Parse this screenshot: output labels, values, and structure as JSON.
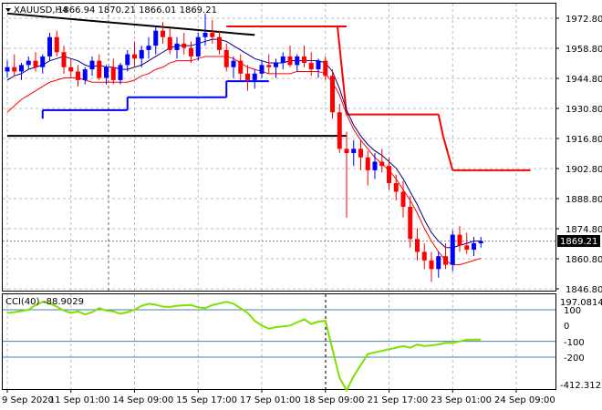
{
  "header": {
    "symbol": "XAUUSD,H4",
    "ohlc": "1866.94 1870.21 1866.01 1869.21"
  },
  "price_badge": "1869.21",
  "chart_data": [
    {
      "type": "candlestick",
      "title": "XAUUSD,H4",
      "ylim": [
        1846.8,
        1979.0
      ],
      "y_ticks": [
        "1972.80",
        "1958.80",
        "1944.80",
        "1930.80",
        "1916.80",
        "1902.80",
        "1888.80",
        "1874.80",
        "1860.80",
        "1846.80"
      ],
      "x_ticks": [
        "9 Sep 2020",
        "11 Sep 01:00",
        "14 Sep 09:00",
        "15 Sep 17:00",
        "17 Sep 01:00",
        "18 Sep 09:00",
        "21 Sep 17:00",
        "23 Sep 01:00",
        "24 Sep 09:00"
      ],
      "x_tick_index": [
        0,
        9,
        18,
        27,
        36,
        45,
        54,
        63,
        72
      ],
      "candles": [
        [
          1948,
          1953,
          1945,
          1950
        ],
        [
          1950,
          1956,
          1946,
          1948
        ],
        [
          1948,
          1952,
          1944,
          1951
        ],
        [
          1951,
          1955,
          1949,
          1953
        ],
        [
          1953,
          1957,
          1948,
          1950
        ],
        [
          1950,
          1956,
          1947,
          1955
        ],
        [
          1955,
          1966,
          1953,
          1964
        ],
        [
          1964,
          1967,
          1955,
          1957
        ],
        [
          1957,
          1960,
          1947,
          1950
        ],
        [
          1950,
          1954,
          1945,
          1948
        ],
        [
          1948,
          1951,
          1941,
          1944
        ],
        [
          1944,
          1950,
          1942,
          1949
        ],
        [
          1949,
          1955,
          1946,
          1953
        ],
        [
          1953,
          1956,
          1944,
          1945
        ],
        [
          1945,
          1951,
          1942,
          1950
        ],
        [
          1950,
          1954,
          1942,
          1944
        ],
        [
          1944,
          1952,
          1942,
          1951
        ],
        [
          1951,
          1958,
          1948,
          1956
        ],
        [
          1956,
          1962,
          1950,
          1954
        ],
        [
          1954,
          1960,
          1950,
          1958
        ],
        [
          1958,
          1964,
          1954,
          1960
        ],
        [
          1960,
          1969,
          1956,
          1967
        ],
        [
          1967,
          1971,
          1961,
          1964
        ],
        [
          1964,
          1968,
          1956,
          1958
        ],
        [
          1958,
          1964,
          1954,
          1961
        ],
        [
          1961,
          1966,
          1956,
          1959
        ],
        [
          1959,
          1962,
          1952,
          1955
        ],
        [
          1955,
          1966,
          1953,
          1964
        ],
        [
          1964,
          1975,
          1960,
          1966
        ],
        [
          1966,
          1972,
          1961,
          1964
        ],
        [
          1964,
          1967,
          1956,
          1958
        ],
        [
          1958,
          1961,
          1948,
          1950
        ],
        [
          1950,
          1955,
          1945,
          1953
        ],
        [
          1953,
          1956,
          1944,
          1947
        ],
        [
          1947,
          1951,
          1939,
          1944
        ],
        [
          1944,
          1949,
          1940,
          1947
        ],
        [
          1947,
          1953,
          1945,
          1951
        ],
        [
          1951,
          1956,
          1947,
          1950
        ],
        [
          1950,
          1954,
          1945,
          1952
        ],
        [
          1952,
          1957,
          1949,
          1955
        ],
        [
          1955,
          1960,
          1950,
          1951
        ],
        [
          1951,
          1956,
          1948,
          1955
        ],
        [
          1955,
          1960,
          1950,
          1952
        ],
        [
          1952,
          1957,
          1946,
          1949
        ],
        [
          1949,
          1954,
          1945,
          1953
        ],
        [
          1953,
          1955,
          1944,
          1946
        ],
        [
          1946,
          1949,
          1926,
          1929
        ],
        [
          1929,
          1933,
          1910,
          1912
        ],
        [
          1912,
          1920,
          1880,
          1910
        ],
        [
          1910,
          1916,
          1904,
          1912
        ],
        [
          1912,
          1916,
          1902,
          1908
        ],
        [
          1908,
          1911,
          1895,
          1902
        ],
        [
          1902,
          1910,
          1898,
          1906
        ],
        [
          1906,
          1912,
          1901,
          1904
        ],
        [
          1904,
          1908,
          1893,
          1896
        ],
        [
          1896,
          1900,
          1888,
          1892
        ],
        [
          1892,
          1897,
          1880,
          1885
        ],
        [
          1885,
          1890,
          1866,
          1870
        ],
        [
          1870,
          1875,
          1860,
          1864
        ],
        [
          1864,
          1868,
          1856,
          1860
        ],
        [
          1860,
          1864,
          1850,
          1856
        ],
        [
          1856,
          1864,
          1852,
          1862
        ],
        [
          1862,
          1868,
          1856,
          1858
        ],
        [
          1858,
          1874,
          1855,
          1872
        ],
        [
          1872,
          1876,
          1864,
          1867
        ],
        [
          1867,
          1873,
          1863,
          1865
        ],
        [
          1865,
          1871,
          1862,
          1868
        ],
        [
          1868,
          1871,
          1866,
          1869
        ]
      ],
      "indicators": [
        {
          "name": "blue ma",
          "values": [
            1944,
            1946,
            1947,
            1949,
            1950,
            1951,
            1953,
            1954,
            1955,
            1954,
            1953,
            1951,
            1950,
            1951,
            1950,
            1950,
            1949,
            1949,
            1950,
            1951,
            1953,
            1955,
            1957,
            1959,
            1960,
            1960,
            1960,
            1961,
            1962,
            1963,
            1963,
            1962,
            1960,
            1958,
            1956,
            1954,
            1953,
            1952,
            1952,
            1952,
            1953,
            1953,
            1953,
            1953,
            1953,
            1952,
            1948,
            1940,
            1930,
            1923,
            1918,
            1914,
            1911,
            1909,
            1906,
            1903,
            1898,
            1892,
            1886,
            1879,
            1873,
            1869,
            1866,
            1866,
            1867,
            1868,
            1869,
            1869
          ]
        },
        {
          "name": "red ma",
          "values": [
            1929,
            1932,
            1935,
            1937,
            1939,
            1941,
            1943,
            1944,
            1945,
            1945,
            1945,
            1944,
            1943,
            1943,
            1943,
            1943,
            1943,
            1943,
            1944,
            1946,
            1947,
            1949,
            1950,
            1952,
            1953,
            1953,
            1953,
            1954,
            1955,
            1955,
            1955,
            1955,
            1954,
            1952,
            1950,
            1949,
            1948,
            1947,
            1947,
            1947,
            1947,
            1948,
            1948,
            1948,
            1948,
            1947,
            1943,
            1937,
            1928,
            1921,
            1916,
            1912,
            1908,
            1905,
            1902,
            1898,
            1893,
            1888,
            1882,
            1875,
            1869,
            1864,
            1860,
            1858,
            1858,
            1859,
            1860,
            1861
          ]
        }
      ],
      "stop_levels": [
        {
          "color": "#0000ff",
          "segments": [
            [
              5,
              17,
              1930
            ],
            [
              17,
              31,
              1936
            ],
            [
              31,
              37,
              1943.5
            ]
          ]
        },
        {
          "color": "#ff0000",
          "segments": [
            [
              31,
              48,
              1969
            ],
            [
              48,
              61,
              1928
            ],
            [
              63,
              74,
              1902
            ]
          ]
        }
      ],
      "trendlines": [
        {
          "color": "#000000",
          "points": [
            [
              0,
              1975
            ],
            [
              35,
              1965
            ]
          ]
        },
        {
          "color": "#000000",
          "points": [
            [
              0,
              1918
            ],
            [
              48,
              1918
            ]
          ]
        }
      ],
      "grid": true
    },
    {
      "type": "line",
      "title": "CCI(40)",
      "value_label": "-88.9029",
      "ylim": [
        -412.3125,
        197.0814
      ],
      "y_ticks": [
        "197.0814",
        "100",
        "0",
        "-100",
        "-200",
        "-412.3125"
      ],
      "levels": [
        100,
        -100,
        -200
      ],
      "series": [
        {
          "name": "CCI(40)",
          "color": "#7fe000",
          "values": [
            80,
            85,
            92,
            100,
            130,
            150,
            140,
            120,
            95,
            80,
            90,
            70,
            85,
            110,
            95,
            90,
            75,
            85,
            100,
            125,
            138,
            132,
            120,
            118,
            125,
            128,
            130,
            115,
            110,
            130,
            140,
            150,
            138,
            110,
            80,
            30,
            0,
            -20,
            -10,
            -5,
            0,
            20,
            40,
            10,
            25,
            30,
            -150,
            -330,
            -410,
            -320,
            -250,
            -180,
            -170,
            -160,
            -150,
            -140,
            -130,
            -140,
            -120,
            -130,
            -125,
            -120,
            -110,
            -110,
            -100,
            -90,
            -89,
            -88.9029
          ]
        }
      ]
    }
  ]
}
